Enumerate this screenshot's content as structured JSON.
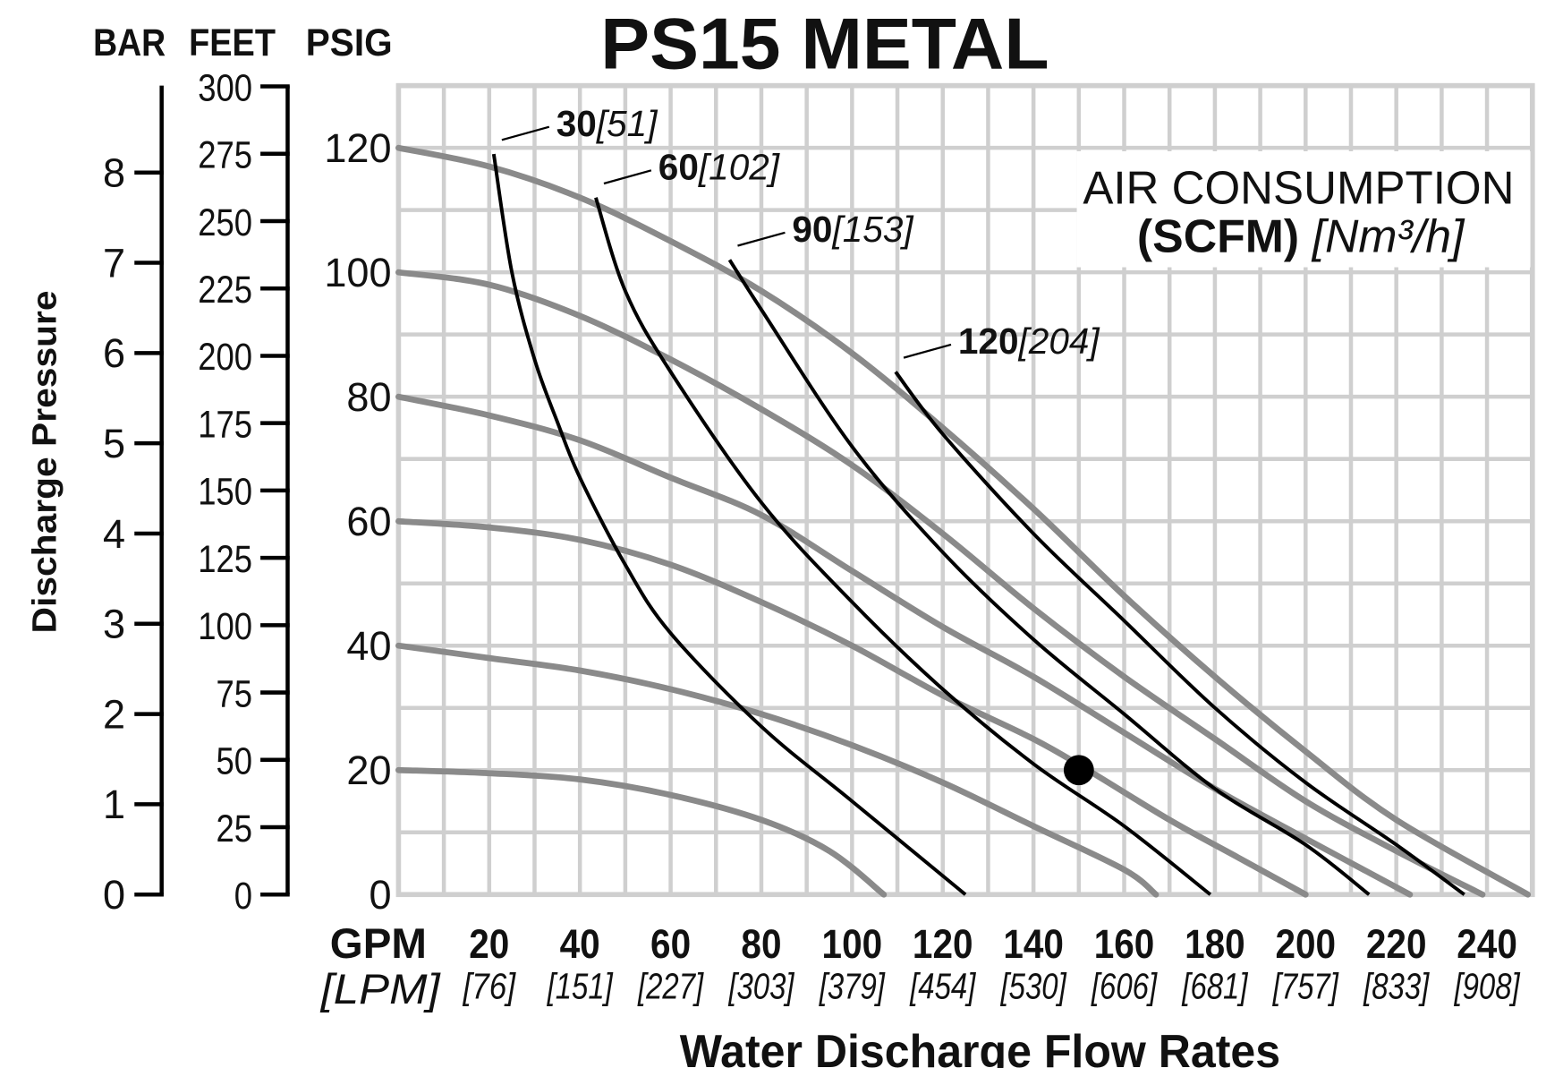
{
  "chart_data": {
    "type": "line",
    "title": "PS15 METAL",
    "xlabel": "Water Discharge Flow Rates",
    "ylabel": "Discharge Pressure",
    "xlim": [
      0,
      250
    ],
    "ylim": [
      0,
      130
    ],
    "grid": true,
    "x_unit_primary": "GPM",
    "x_unit_secondary": "[LPM]",
    "x_ticks": [
      {
        "gpm": "20",
        "lpm": "[76]"
      },
      {
        "gpm": "40",
        "lpm": "[151]"
      },
      {
        "gpm": "60",
        "lpm": "[227]"
      },
      {
        "gpm": "80",
        "lpm": "[303]"
      },
      {
        "gpm": "100",
        "lpm": "[379]"
      },
      {
        "gpm": "120",
        "lpm": "[454]"
      },
      {
        "gpm": "140",
        "lpm": "[530]"
      },
      {
        "gpm": "160",
        "lpm": "[606]"
      },
      {
        "gpm": "180",
        "lpm": "[681]"
      },
      {
        "gpm": "200",
        "lpm": "[757]"
      },
      {
        "gpm": "220",
        "lpm": "[833]"
      },
      {
        "gpm": "240",
        "lpm": "[908]"
      }
    ],
    "y_axes": {
      "bar": {
        "label": "BAR",
        "ticks": [
          "0",
          "1",
          "2",
          "3",
          "4",
          "5",
          "6",
          "7",
          "8"
        ]
      },
      "feet": {
        "label": "FEET",
        "ticks": [
          "0",
          "25",
          "50",
          "75",
          "100",
          "125",
          "150",
          "175",
          "200",
          "225",
          "250",
          "275",
          "300"
        ]
      },
      "psig": {
        "label": "PSIG",
        "ticks": [
          "0",
          "20",
          "40",
          "60",
          "80",
          "100",
          "120"
        ]
      }
    },
    "legend": {
      "title": "AIR CONSUMPTION",
      "unit_bold": "(SCFM)",
      "unit_italic": "[Nm³/h]",
      "placement": "top-right"
    },
    "pressure_curves": [
      {
        "name": "120 psig",
        "points": [
          [
            0,
            120
          ],
          [
            20,
            117
          ],
          [
            40,
            112
          ],
          [
            60,
            105
          ],
          [
            80,
            97
          ],
          [
            100,
            87
          ],
          [
            120,
            75
          ],
          [
            140,
            62
          ],
          [
            160,
            48
          ],
          [
            180,
            35
          ],
          [
            200,
            23
          ],
          [
            220,
            12
          ],
          [
            249,
            0
          ]
        ]
      },
      {
        "name": "100 psig",
        "points": [
          [
            0,
            100
          ],
          [
            20,
            98
          ],
          [
            40,
            93
          ],
          [
            60,
            86
          ],
          [
            80,
            78
          ],
          [
            100,
            69
          ],
          [
            120,
            58
          ],
          [
            140,
            46
          ],
          [
            160,
            35
          ],
          [
            180,
            25
          ],
          [
            200,
            15
          ],
          [
            220,
            7
          ],
          [
            239,
            0
          ]
        ]
      },
      {
        "name": "80 psig",
        "points": [
          [
            0,
            80
          ],
          [
            20,
            77
          ],
          [
            40,
            73
          ],
          [
            60,
            67
          ],
          [
            80,
            61
          ],
          [
            100,
            52
          ],
          [
            120,
            43
          ],
          [
            140,
            35
          ],
          [
            160,
            26
          ],
          [
            180,
            17
          ],
          [
            200,
            9
          ],
          [
            223,
            0
          ]
        ]
      },
      {
        "name": "60 psig",
        "points": [
          [
            0,
            60
          ],
          [
            20,
            59
          ],
          [
            40,
            57
          ],
          [
            60,
            53
          ],
          [
            80,
            47
          ],
          [
            100,
            40
          ],
          [
            120,
            32
          ],
          [
            140,
            25
          ],
          [
            152,
            20
          ],
          [
            170,
            12
          ],
          [
            185,
            6
          ],
          [
            200,
            0
          ]
        ]
      },
      {
        "name": "40 psig",
        "points": [
          [
            0,
            40
          ],
          [
            20,
            38
          ],
          [
            40,
            36
          ],
          [
            60,
            33
          ],
          [
            80,
            29
          ],
          [
            100,
            24
          ],
          [
            120,
            18
          ],
          [
            140,
            11
          ],
          [
            160,
            4
          ],
          [
            167,
            0
          ]
        ]
      },
      {
        "name": "20 psig",
        "points": [
          [
            0,
            20
          ],
          [
            20,
            19.5
          ],
          [
            40,
            18.5
          ],
          [
            60,
            16
          ],
          [
            80,
            12
          ],
          [
            95,
            7
          ],
          [
            107,
            0
          ]
        ]
      }
    ],
    "air_curves": [
      {
        "label_bold": "30",
        "label_italic": "[51]",
        "points": [
          [
            21,
            119
          ],
          [
            25,
            100
          ],
          [
            30,
            86
          ],
          [
            35,
            76
          ],
          [
            40,
            67
          ],
          [
            50,
            53
          ],
          [
            60,
            42
          ],
          [
            80,
            27
          ],
          [
            100,
            15
          ],
          [
            125,
            0
          ]
        ]
      },
      {
        "label_bold": "60",
        "label_italic": "[102]",
        "points": [
          [
            43.5,
            112
          ],
          [
            50,
            97
          ],
          [
            60,
            84
          ],
          [
            80,
            63
          ],
          [
            100,
            47
          ],
          [
            120,
            33
          ],
          [
            140,
            21
          ],
          [
            160,
            11
          ],
          [
            179,
            0
          ]
        ]
      },
      {
        "label_bold": "90",
        "label_italic": "[153]",
        "points": [
          [
            73,
            102
          ],
          [
            80,
            94
          ],
          [
            100,
            72
          ],
          [
            120,
            55
          ],
          [
            140,
            41
          ],
          [
            160,
            29
          ],
          [
            180,
            17
          ],
          [
            200,
            8
          ],
          [
            214,
            0
          ]
        ]
      },
      {
        "label_bold": "120",
        "label_italic": "[204]",
        "points": [
          [
            109.6,
            84
          ],
          [
            120,
            74
          ],
          [
            140,
            58
          ],
          [
            160,
            44
          ],
          [
            180,
            30
          ],
          [
            200,
            18
          ],
          [
            220,
            8
          ],
          [
            235,
            0
          ]
        ]
      }
    ],
    "operating_point": {
      "gpm": 150,
      "psig": 20
    },
    "colors": {
      "pressure_curve": "#8a8a8a",
      "air_curve": "#000000",
      "grid": "#cfcfcf"
    }
  }
}
